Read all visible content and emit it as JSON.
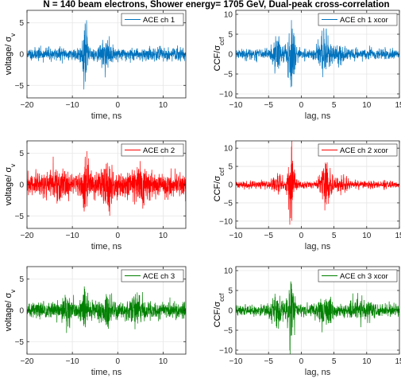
{
  "figure": {
    "title": "N = 140 beam electrons, Shower energy= 1705 GeV, Dual-peak cross-correlation"
  },
  "chart_data": [
    {
      "type": "line",
      "xlabel": "time, ns",
      "ylabel": "voltage/ σ_v",
      "xlim": [
        -20,
        15
      ],
      "ylim": [
        -7,
        7
      ],
      "xticks": [
        -20,
        -10,
        0,
        10
      ],
      "yticks": [
        -5,
        0,
        5
      ],
      "grid": true,
      "legend_position": "top-right",
      "series": [
        {
          "name": "ACE ch 1",
          "color": "#0072BD",
          "seed": 11,
          "noise": 0.55,
          "events": [
            {
              "x": -7.2,
              "amp": 4.9,
              "width": 0.6
            },
            {
              "x": -2.5,
              "amp": 1.4,
              "width": 1.2
            }
          ]
        }
      ]
    },
    {
      "type": "line",
      "xlabel": "lag, ns",
      "ylabel": "CCF/σ_ccf",
      "xlim": [
        -10,
        15
      ],
      "ylim": [
        -11,
        11
      ],
      "xticks": [
        -10,
        -5,
        0,
        5,
        10,
        15
      ],
      "yticks": [
        -10,
        -5,
        0,
        5,
        10
      ],
      "grid": true,
      "legend_position": "top-right",
      "series": [
        {
          "name": "ACE ch 1 xcor",
          "color": "#0072BD",
          "seed": 21,
          "noise": 0.7,
          "events": [
            {
              "x": -1.5,
              "amp": 9.0,
              "width": 0.55
            },
            {
              "x": -3.6,
              "amp": 3.0,
              "width": 0.9
            },
            {
              "x": 3.5,
              "amp": 4.0,
              "width": 1.0
            },
            {
              "x": 6.0,
              "amp": 1.8,
              "width": 1.0
            }
          ]
        }
      ]
    },
    {
      "type": "line",
      "xlabel": "time, ns",
      "ylabel": "voltage/ σ_v",
      "xlim": [
        -20,
        15
      ],
      "ylim": [
        -7,
        7
      ],
      "xticks": [
        -20,
        -10,
        0,
        10
      ],
      "yticks": [
        -5,
        0,
        5
      ],
      "grid": true,
      "legend_position": "top-right",
      "series": [
        {
          "name": "ACE ch 2",
          "color": "#FF0000",
          "seed": 31,
          "noise": 1.0,
          "events": [
            {
              "x": -7.2,
              "amp": 4.0,
              "width": 0.7
            },
            {
              "x": -2.3,
              "amp": 3.5,
              "width": 1.0
            },
            {
              "x": -13.5,
              "amp": 1.5,
              "width": 1.5
            },
            {
              "x": 5.0,
              "amp": 1.4,
              "width": 2.0
            }
          ]
        }
      ]
    },
    {
      "type": "line",
      "xlabel": "lag, ns",
      "ylabel": "CCF/σ_ccf",
      "xlim": [
        -10,
        15
      ],
      "ylim": [
        -12,
        12
      ],
      "xticks": [
        -10,
        -5,
        0,
        5,
        10,
        15
      ],
      "yticks": [
        -10,
        -5,
        0,
        5,
        10
      ],
      "grid": true,
      "legend_position": "top-right",
      "series": [
        {
          "name": "ACE ch 2 xcor",
          "color": "#FF0000",
          "seed": 41,
          "noise": 0.55,
          "events": [
            {
              "x": -1.5,
              "amp": 11.0,
              "width": 0.5
            },
            {
              "x": 3.8,
              "amp": 6.0,
              "width": 0.9
            },
            {
              "x": -3.6,
              "amp": 2.0,
              "width": 0.8
            },
            {
              "x": 6.2,
              "amp": 1.5,
              "width": 1.0
            }
          ]
        }
      ]
    },
    {
      "type": "line",
      "xlabel": "time, ns",
      "ylabel": "voltage/ σ_v",
      "xlim": [
        -20,
        15
      ],
      "ylim": [
        -7,
        7
      ],
      "xticks": [
        -20,
        -10,
        0,
        10
      ],
      "yticks": [
        -5,
        0,
        5
      ],
      "grid": true,
      "legend_position": "top-right",
      "series": [
        {
          "name": "ACE ch 3",
          "color": "#008000",
          "seed": 51,
          "noise": 0.75,
          "events": [
            {
              "x": -7.2,
              "amp": 3.0,
              "width": 0.6
            },
            {
              "x": -2.5,
              "amp": 2.0,
              "width": 1.0
            },
            {
              "x": -11.0,
              "amp": 1.5,
              "width": 1.2
            },
            {
              "x": 4.0,
              "amp": 1.2,
              "width": 1.5
            }
          ]
        }
      ]
    },
    {
      "type": "line",
      "xlabel": "lag, ns",
      "ylabel": "CCF/σ_ccf",
      "xlim": [
        -10,
        15
      ],
      "ylim": [
        -11,
        11
      ],
      "xticks": [
        -10,
        -5,
        0,
        5,
        10,
        15
      ],
      "yticks": [
        -10,
        -5,
        0,
        5,
        10
      ],
      "grid": true,
      "legend_position": "top-right",
      "series": [
        {
          "name": "ACE ch 3 xcor",
          "color": "#008000",
          "seed": 61,
          "noise": 0.8,
          "events": [
            {
              "x": -1.5,
              "amp": 7.0,
              "width": 0.55
            },
            {
              "x": -3.6,
              "amp": 2.5,
              "width": 0.9
            },
            {
              "x": 3.8,
              "amp": 3.0,
              "width": 1.0
            },
            {
              "x": 9.0,
              "amp": 2.0,
              "width": 1.5
            }
          ]
        }
      ]
    }
  ]
}
